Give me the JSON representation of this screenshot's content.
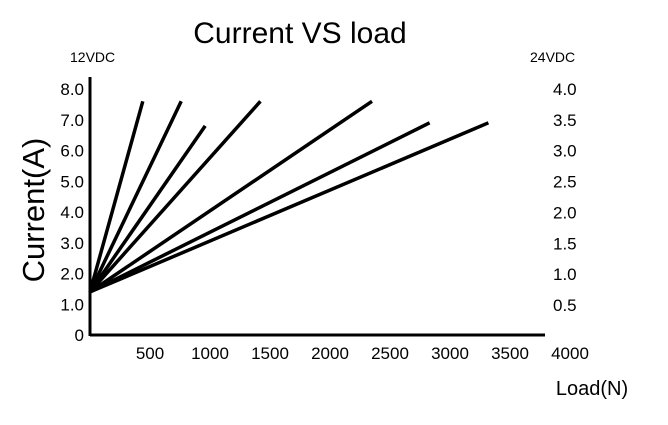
{
  "chart_data": {
    "type": "line",
    "title": "Current VS load",
    "left_axis_caption": "12VDC",
    "right_axis_caption": "24VDC",
    "ylabel": "Current(A)",
    "xlabel": "Load(N)",
    "xlim": [
      0,
      4000
    ],
    "ylim": [
      0,
      8.5
    ],
    "y2lim": [
      0,
      4.25
    ],
    "x_ticks": [
      "500",
      "1000",
      "1500",
      "2000",
      "2500",
      "3000",
      "3500",
      "4000"
    ],
    "y_ticks": [
      "0",
      "1.0",
      "2.0",
      "3.0",
      "4.0",
      "5.0",
      "6.0",
      "7.0",
      "8.0"
    ],
    "y2_ticks": [
      "0.5",
      "1.0",
      "1.5",
      "2.0",
      "2.5",
      "3.0",
      "3.5",
      "4.0"
    ],
    "grid": false,
    "series": [
      {
        "points": [
          [
            0,
            1.4
          ],
          [
            440,
            7.6
          ]
        ]
      },
      {
        "points": [
          [
            0,
            1.4
          ],
          [
            760,
            7.6
          ]
        ]
      },
      {
        "points": [
          [
            0,
            1.4
          ],
          [
            960,
            6.8
          ]
        ]
      },
      {
        "points": [
          [
            0,
            1.4
          ],
          [
            1420,
            7.6
          ]
        ]
      },
      {
        "points": [
          [
            0,
            1.4
          ],
          [
            2350,
            7.6
          ]
        ]
      },
      {
        "points": [
          [
            0,
            1.4
          ],
          [
            2830,
            6.9
          ]
        ]
      },
      {
        "points": [
          [
            0,
            1.4
          ],
          [
            3320,
            6.9
          ]
        ]
      }
    ]
  }
}
